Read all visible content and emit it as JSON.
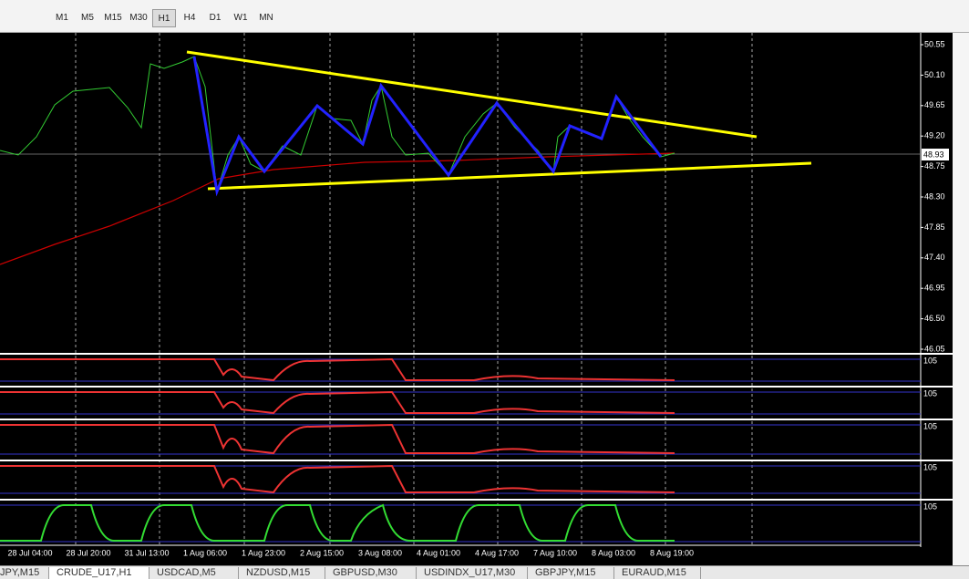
{
  "toolbar": {
    "timeframes": [
      "M1",
      "M5",
      "M15",
      "M30",
      "H1",
      "H4",
      "D1",
      "W1",
      "MN"
    ],
    "active": "H1"
  },
  "price_axis": {
    "labels": [
      "50.55",
      "50.10",
      "49.65",
      "49.20",
      "48.75",
      "48.30",
      "47.85",
      "47.40",
      "46.95",
      "46.50",
      "46.05"
    ],
    "current": "48.93"
  },
  "time_axis": {
    "labels": [
      "28 Jul 04:00",
      "28 Jul 20:00",
      "31 Jul 13:00",
      "1 Aug 06:00",
      "1 Aug 23:00",
      "2 Aug 15:00",
      "3 Aug 08:00",
      "4 Aug 01:00",
      "4 Aug 17:00",
      "7 Aug 10:00",
      "8 Aug 03:00",
      "8 Aug 19:00"
    ]
  },
  "indicators": {
    "labels": [
      "105",
      "105",
      "105",
      "105",
      "105"
    ]
  },
  "tabs": [
    "JPY,M15",
    "CRUDE_U17,H1",
    "USDCAD,M5",
    "NZDUSD,M15",
    "GBPUSD,M30",
    "USDINDX_U17,M30",
    "GBPJPY,M15",
    "EURAUD,M15"
  ],
  "active_tab": "CRUDE_U17,H1"
}
